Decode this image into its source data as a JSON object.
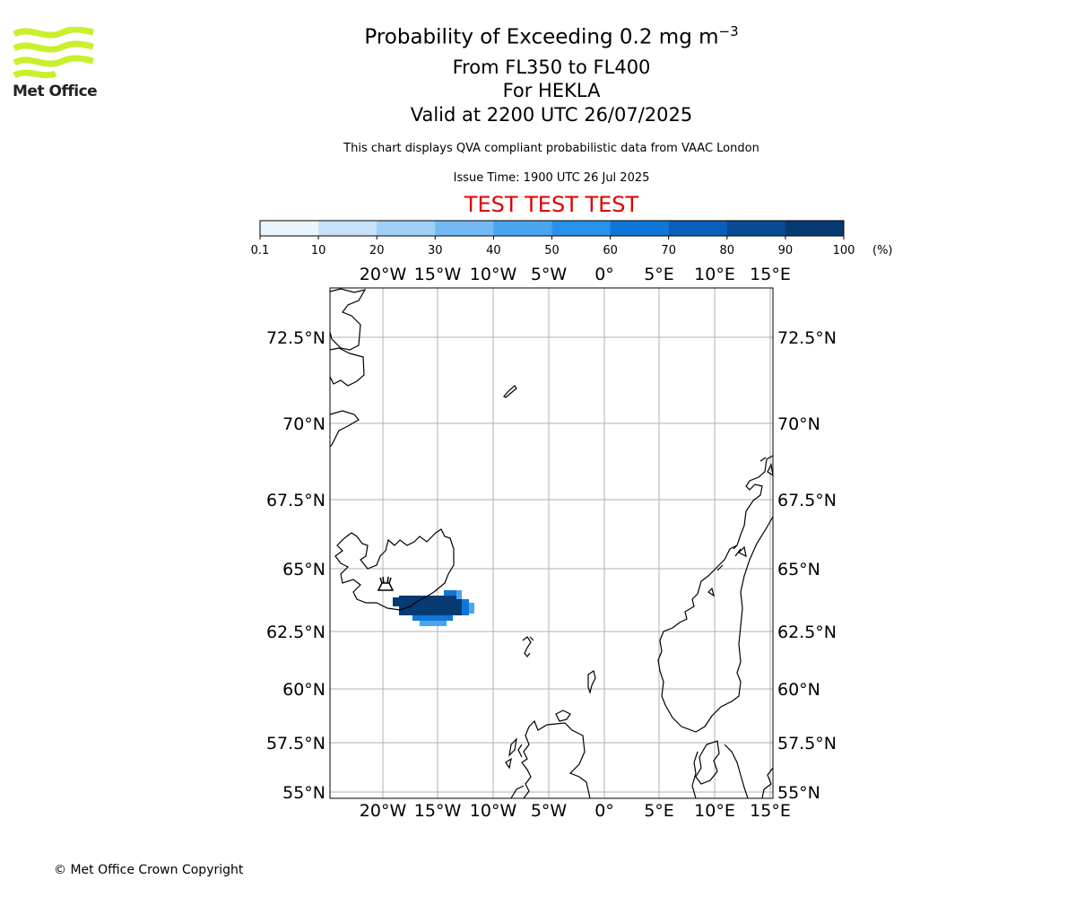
{
  "header": {
    "title": "Probability of Exceeding 0.2 mg m",
    "title_superscript": "−3",
    "flight_levels": "From FL350 to FL400",
    "volcano": "For HEKLA",
    "valid_time": "Valid at 2200 UTC 26/07/2025",
    "description": "This chart displays QVA compliant probabilistic data from VAAC London",
    "issue_time": "Issue Time: 1900 UTC 26 Jul 2025",
    "test_banner": "TEST TEST TEST"
  },
  "logo": {
    "text": "Met Office",
    "color": "#c8f02c"
  },
  "colorbar": {
    "unit_label": "(%)",
    "tick_labels": [
      "0.1",
      "10",
      "20",
      "30",
      "40",
      "50",
      "60",
      "70",
      "80",
      "90",
      "100"
    ],
    "colors": [
      "#eaf4fd",
      "#c6e2fb",
      "#9ed0f8",
      "#72b9f3",
      "#4aa5ef",
      "#2892ea",
      "#0f77d9",
      "#0a5fb8",
      "#084b94",
      "#063a73",
      "#042a55"
    ]
  },
  "map": {
    "lon_labels": [
      "20°W",
      "15°W",
      "10°W",
      "5°W",
      "0°",
      "5°E",
      "10°E",
      "15°E"
    ],
    "lat_labels": [
      "72.5°N",
      "70°N",
      "67.5°N",
      "65°N",
      "62.5°N",
      "60°N",
      "57.5°N",
      "55°N"
    ],
    "grid": true,
    "coastline_color": "#000000",
    "grid_color": "#b0b0b0",
    "volcano_icon": "volcano-icon",
    "plume_colors": {
      "dark": "#063a73",
      "mid": "#0f77d9",
      "light": "#4aa5ef"
    }
  },
  "footer": {
    "copyright": "© Met Office Crown Copyright"
  }
}
